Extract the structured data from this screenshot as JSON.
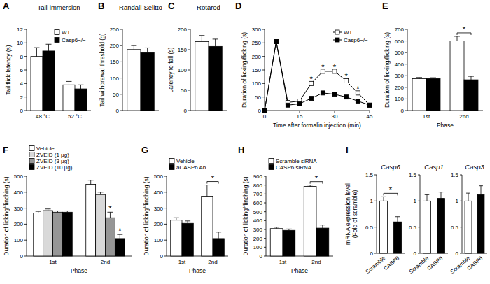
{
  "chart_data": [
    {
      "type": "bar",
      "label": "A",
      "title": "Tail-immersion",
      "y_label": "Tail flick latency (s)",
      "categories": [
        "48 °C",
        "52 °C"
      ],
      "series": [
        {
          "name": "WT",
          "color": "#ffffff",
          "values": [
            8.0,
            3.8
          ],
          "errors": [
            1.3,
            0.5
          ]
        },
        {
          "name": "Casp6−/−",
          "color": "#000000",
          "values": [
            8.8,
            3.2
          ],
          "errors": [
            1.0,
            0.6
          ]
        }
      ],
      "ylim": [
        0,
        12
      ],
      "yticks": [
        0,
        2,
        4,
        6,
        8,
        10,
        12
      ],
      "legend": "top-right"
    },
    {
      "type": "bar",
      "label": "B",
      "title": "Randall-Selitto",
      "y_label": "Tail withdrawal threshold (g)",
      "categories": [
        null
      ],
      "series": [
        {
          "color": "#ffffff",
          "values": [
            188
          ],
          "errors": [
            12
          ]
        },
        {
          "color": "#000000",
          "values": [
            178
          ],
          "errors": [
            15
          ]
        }
      ],
      "ylim": [
        0,
        250
      ],
      "yticks": [
        0,
        50,
        100,
        150,
        200,
        250
      ]
    },
    {
      "type": "bar",
      "label": "C",
      "title": "Rotarod",
      "y_label": "Latency to fall (s)",
      "categories": [
        null
      ],
      "series": [
        {
          "color": "#ffffff",
          "values": [
            170
          ],
          "errors": [
            15
          ]
        },
        {
          "color": "#000000",
          "values": [
            158
          ],
          "errors": [
            18
          ]
        }
      ],
      "ylim": [
        0,
        200
      ],
      "yticks": [
        0,
        50,
        100,
        150,
        200
      ]
    },
    {
      "type": "line",
      "label": "D",
      "x_label": "Time after formalin injection (min)",
      "y_label": "Duration of licking/flicking (s)",
      "x": [
        0,
        5,
        10,
        15,
        20,
        25,
        30,
        35,
        40,
        45
      ],
      "series": [
        {
          "name": "WT",
          "color": "#ffffff",
          "marker": "square",
          "values": [
            0,
            255,
            30,
            35,
            100,
            145,
            145,
            110,
            65,
            20
          ]
        },
        {
          "name": "Casp6−/−",
          "color": "#000000",
          "marker": "square",
          "values": [
            0,
            255,
            20,
            25,
            45,
            65,
            60,
            50,
            35,
            20
          ]
        }
      ],
      "xlim": [
        0,
        45
      ],
      "xticks": [
        0,
        15,
        30,
        45
      ],
      "ylim": [
        0,
        300
      ],
      "yticks": [
        0,
        50,
        100,
        150,
        200,
        250,
        300
      ],
      "legend": "top-right",
      "annotations": [
        {
          "text": "*",
          "x": 20
        },
        {
          "text": "*",
          "x": 25
        },
        {
          "text": "*",
          "x": 30
        },
        {
          "text": "*",
          "x": 35
        },
        {
          "text": "*",
          "x": 40
        }
      ]
    },
    {
      "type": "bar",
      "label": "E",
      "x_label": "Phase",
      "y_label": "Duration of licking/flicking (s)",
      "categories": [
        "1st",
        "2nd"
      ],
      "series": [
        {
          "color": "#ffffff",
          "values": [
            275,
            600
          ],
          "errors": [
            10,
            40
          ]
        },
        {
          "color": "#000000",
          "values": [
            275,
            265
          ],
          "errors": [
            8,
            30
          ]
        }
      ],
      "ylim": [
        0,
        700
      ],
      "yticks": [
        0,
        100,
        200,
        300,
        400,
        500,
        600,
        700
      ],
      "annotations": [
        {
          "text": "*",
          "category": 1
        }
      ]
    },
    {
      "type": "bar",
      "label": "F",
      "x_label": "Phase",
      "y_label": "Duration of licking/flinching (s)",
      "categories": [
        "1st",
        "2nd"
      ],
      "series": [
        {
          "name": "Vehicle",
          "color": "#ffffff",
          "values": [
            270,
            450
          ],
          "errors": [
            10,
            25
          ]
        },
        {
          "name": "ZVEID (1 μg)",
          "color": "#d9d9d9",
          "values": [
            285,
            385
          ],
          "errors": [
            10,
            15
          ]
        },
        {
          "name": "ZVEID (3 μg)",
          "color": "#969696",
          "values": [
            275,
            240
          ],
          "errors": [
            8,
            35
          ]
        },
        {
          "name": "ZVEID (10 μg)",
          "color": "#000000",
          "values": [
            275,
            110
          ],
          "errors": [
            8,
            25
          ]
        }
      ],
      "ylim": [
        0,
        500
      ],
      "yticks": [
        0,
        100,
        200,
        300,
        400,
        500
      ],
      "legend": "top-left",
      "annotations": [
        {
          "text": "*",
          "category": 1,
          "series": 2
        },
        {
          "text": "*",
          "category": 1,
          "series": 3
        }
      ]
    },
    {
      "type": "bar",
      "label": "G",
      "x_label": "Phase",
      "y_label": "Duration of licking/flinching (s)",
      "categories": [
        "1st",
        "2nd"
      ],
      "series": [
        {
          "name": "Vehicle",
          "color": "#ffffff",
          "values": [
            225,
            375
          ],
          "errors": [
            15,
            70
          ]
        },
        {
          "name": "aCASP6 Ab",
          "color": "#000000",
          "values": [
            205,
            110
          ],
          "errors": [
            15,
            40
          ]
        }
      ],
      "ylim": [
        0,
        500
      ],
      "yticks": [
        0,
        100,
        200,
        300,
        400,
        500
      ],
      "legend": "top-left",
      "annotations": [
        {
          "text": "*",
          "category": 1
        }
      ]
    },
    {
      "type": "bar",
      "label": "H",
      "x_label": "Phase",
      "y_label": "Duration of licking/flinching (s)",
      "categories": [
        "1st",
        "2nd"
      ],
      "series": [
        {
          "name": "Scramble siRNA",
          "color": "#ffffff",
          "values": [
            310,
            785
          ],
          "errors": [
            15,
            15
          ]
        },
        {
          "name": "CASP6 siRNA",
          "color": "#000000",
          "values": [
            290,
            315
          ],
          "errors": [
            15,
            35
          ]
        }
      ],
      "ylim": [
        0,
        900
      ],
      "yticks": [
        0,
        100,
        200,
        300,
        400,
        500,
        600,
        700,
        800,
        900
      ],
      "legend": "top-left",
      "annotations": [
        {
          "text": "*",
          "category": 1
        }
      ]
    },
    {
      "type": "bar",
      "label": "I",
      "title": "Casp6",
      "y_label": [
        "mRNA expression level",
        "(Fold of scramble)"
      ],
      "categories": [
        "Scramble",
        "CASP6"
      ],
      "series": [
        {
          "colors": [
            "#ffffff",
            "#000000"
          ],
          "values": [
            1.0,
            0.6
          ],
          "errors": [
            0.08,
            0.1
          ]
        }
      ],
      "ylim": [
        0,
        1.5
      ],
      "yticks": [
        0,
        0.5,
        1,
        1.5
      ],
      "annotations": [
        {
          "text": "*"
        }
      ]
    },
    {
      "type": "bar",
      "title": "Casp1",
      "categories": [
        "Scramble",
        "CASP6"
      ],
      "series": [
        {
          "colors": [
            "#ffffff",
            "#000000"
          ],
          "values": [
            1.0,
            1.05
          ],
          "errors": [
            0.12,
            0.12
          ]
        }
      ],
      "ylim": [
        0,
        1.5
      ],
      "yticks": [
        0,
        0.5,
        1,
        1.5
      ]
    },
    {
      "type": "bar",
      "title": "Casp3",
      "categories": [
        "Scramble",
        "CASP6"
      ],
      "series": [
        {
          "colors": [
            "#ffffff",
            "#000000"
          ],
          "values": [
            1.0,
            1.12
          ],
          "errors": [
            0.15,
            0.17
          ]
        }
      ],
      "ylim": [
        0,
        1.5
      ],
      "yticks": [
        0,
        0.5,
        1,
        1.5
      ]
    }
  ]
}
